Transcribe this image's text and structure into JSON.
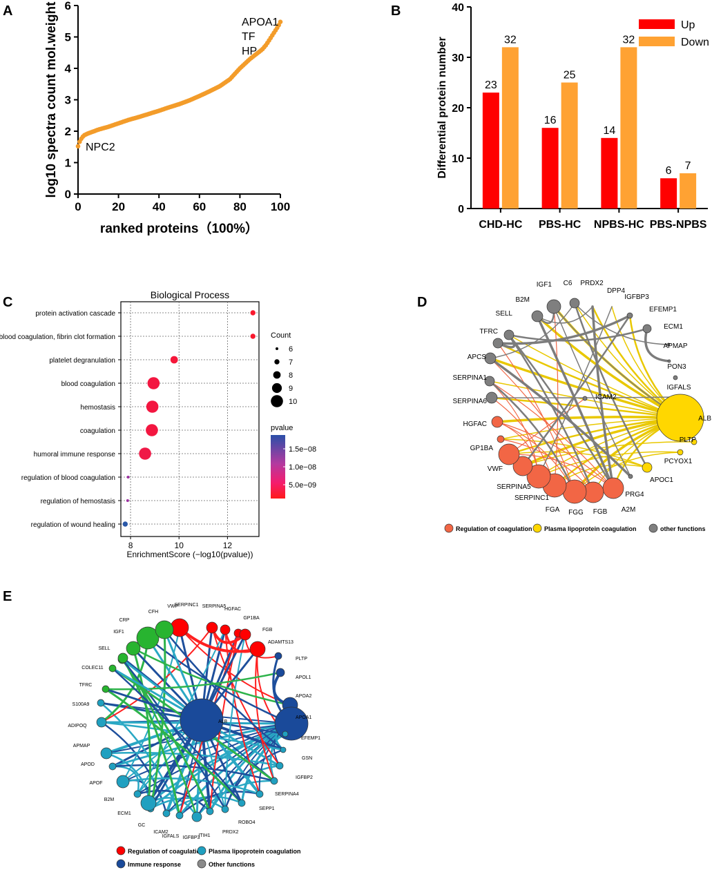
{
  "panel_letters": {
    "a": "A",
    "b": "B",
    "c": "C",
    "d": "D",
    "e": "E"
  },
  "chart_data": [
    {
      "id": "A",
      "type": "scatter",
      "title": "",
      "xlabel": "ranked proteins（100%）",
      "ylabel": "log10 spectra count mol.weight",
      "xlim": [
        0,
        100
      ],
      "ylim": [
        0,
        6
      ],
      "xticks": [
        0,
        20,
        40,
        60,
        80,
        100
      ],
      "yticks": [
        0,
        1,
        2,
        3,
        4,
        5,
        6
      ],
      "color": "#F39C2A",
      "curve_x": [
        0,
        1,
        2,
        3,
        5,
        8,
        10,
        15,
        20,
        25,
        30,
        35,
        40,
        45,
        50,
        55,
        60,
        65,
        70,
        75,
        80,
        85,
        88,
        91,
        93,
        95,
        97,
        98,
        99,
        100
      ],
      "curve_y": [
        1.52,
        1.7,
        1.8,
        1.87,
        1.93,
        2.0,
        2.05,
        2.14,
        2.25,
        2.36,
        2.45,
        2.55,
        2.65,
        2.76,
        2.86,
        2.98,
        3.12,
        3.27,
        3.43,
        3.65,
        4.0,
        4.3,
        4.45,
        4.6,
        4.75,
        4.95,
        5.15,
        5.25,
        5.35,
        5.48
      ],
      "annotations": [
        {
          "label": "APOA1",
          "x": 100,
          "y": 5.48
        },
        {
          "label": "TF",
          "x": 100,
          "y": 5.35
        },
        {
          "label": "HP",
          "x": 100,
          "y": 5.25
        },
        {
          "label": "NPC2",
          "x": 0,
          "y": 1.52
        }
      ]
    },
    {
      "id": "B",
      "type": "bar",
      "title": "",
      "xlabel": "",
      "ylabel": "Differential protein number",
      "categories": [
        "CHD-HC",
        "PBS-HC",
        "NPBS-HC",
        "PBS-NPBS"
      ],
      "series": [
        {
          "name": "Up",
          "values": [
            23,
            16,
            14,
            6
          ],
          "color": "#FF0000"
        },
        {
          "name": "Down",
          "values": [
            32,
            25,
            32,
            7
          ],
          "color": "#FFA233"
        }
      ],
      "ylim": [
        0,
        40
      ],
      "yticks": [
        0,
        10,
        20,
        30,
        40
      ],
      "legend": "top-right"
    },
    {
      "id": "C",
      "type": "scatter",
      "title": "Biological Process",
      "xlabel": "EnrichmentScore (−log10(pvalue))",
      "ylabel": "",
      "xlim": [
        7.6,
        13.3
      ],
      "xticks": [
        8,
        10,
        12
      ],
      "grid": true,
      "terms": [
        {
          "term": "protein activation cascade",
          "score": 13.05,
          "count": 7,
          "pvalue_color": "#F8192E"
        },
        {
          "term": "blood coagulation, fibrin clot formation",
          "score": 13.05,
          "count": 7,
          "pvalue_color": "#F8192E"
        },
        {
          "term": "platelet degranulation",
          "score": 9.8,
          "count": 8,
          "pvalue_color": "#F5173A"
        },
        {
          "term": "blood coagulation",
          "score": 8.95,
          "count": 10,
          "pvalue_color": "#F31640"
        },
        {
          "term": "hemostasis",
          "score": 8.9,
          "count": 10,
          "pvalue_color": "#F31640"
        },
        {
          "term": "coagulation",
          "score": 8.88,
          "count": 10,
          "pvalue_color": "#F31640"
        },
        {
          "term": "humoral immune response",
          "score": 8.6,
          "count": 10,
          "pvalue_color": "#F01947"
        },
        {
          "term": "regulation of blood coagulation",
          "score": 7.9,
          "count": 6,
          "pvalue_color": "#9B2FA0"
        },
        {
          "term": "regulation of hemostasis",
          "score": 7.88,
          "count": 6,
          "pvalue_color": "#9B2FA0"
        },
        {
          "term": "regulation of wound healing",
          "score": 7.78,
          "count": 7,
          "pvalue_color": "#2A58A8"
        }
      ],
      "size_legend_title": "Count",
      "size_legend": [
        6,
        7,
        8,
        9,
        10
      ],
      "color_legend_title": "pvalue",
      "color_legend_ticks": [
        "1.5e−08",
        "1.0e−08",
        "5.0e−09"
      ]
    }
  ],
  "network_d": {
    "nodes": [
      "PRDX2",
      "DPP4",
      "IGFBP3",
      "EFEMP1",
      "ECM1",
      "APMAP",
      "PON3",
      "IGFALS",
      "ALB",
      "PLTP",
      "PCYOX1",
      "APOC1",
      "PRG4",
      "A2M",
      "FGB",
      "FGG",
      "FGA",
      "SERPINC1",
      "SERPINA5",
      "VWF",
      "GP1BA",
      "HGFAC",
      "SERPINA6",
      "SERPINA1",
      "APCS",
      "TFRC",
      "SELL",
      "B2M",
      "IGF1",
      "C6",
      "ICAM2"
    ],
    "legend": [
      {
        "label": "Regulation of coagulation",
        "color": "#F26645"
      },
      {
        "label": "Plasma lipoprotein coagulation",
        "color": "#FFD700"
      },
      {
        "label": "other functions",
        "color": "#7F7F7F"
      }
    ]
  },
  "network_e": {
    "nodes": [
      "SERPINC1",
      "SERPINA5",
      "HGFAC",
      "GP1BA",
      "FGB",
      "ADAMTS13",
      "PLTP",
      "APOL1",
      "APOA2",
      "APOA1",
      "EFEMP1",
      "GSN",
      "IGFBP2",
      "SERPINA4",
      "SEPP1",
      "ROBO4",
      "PRDX2",
      "ITIH1",
      "IGFBP3",
      "IGFALS",
      "ICAM2",
      "GC",
      "ECM1",
      "B2M",
      "APOF",
      "APOD",
      "APMAP",
      "ADIPOQ",
      "S100A9",
      "TFRC",
      "COLEC11",
      "SELL",
      "IGF1",
      "CRP",
      "CFH",
      "VWF",
      "ALB"
    ],
    "legend": [
      {
        "label": "Regulation of coagulation",
        "color": "#FF0000"
      },
      {
        "label": "Plasma lipoprotein coagulation",
        "color": "#20A0C0"
      },
      {
        "label": "Immune response",
        "color": "#1A4A9A"
      },
      {
        "label": "Other functions",
        "color": "#8A8A8A"
      }
    ]
  }
}
